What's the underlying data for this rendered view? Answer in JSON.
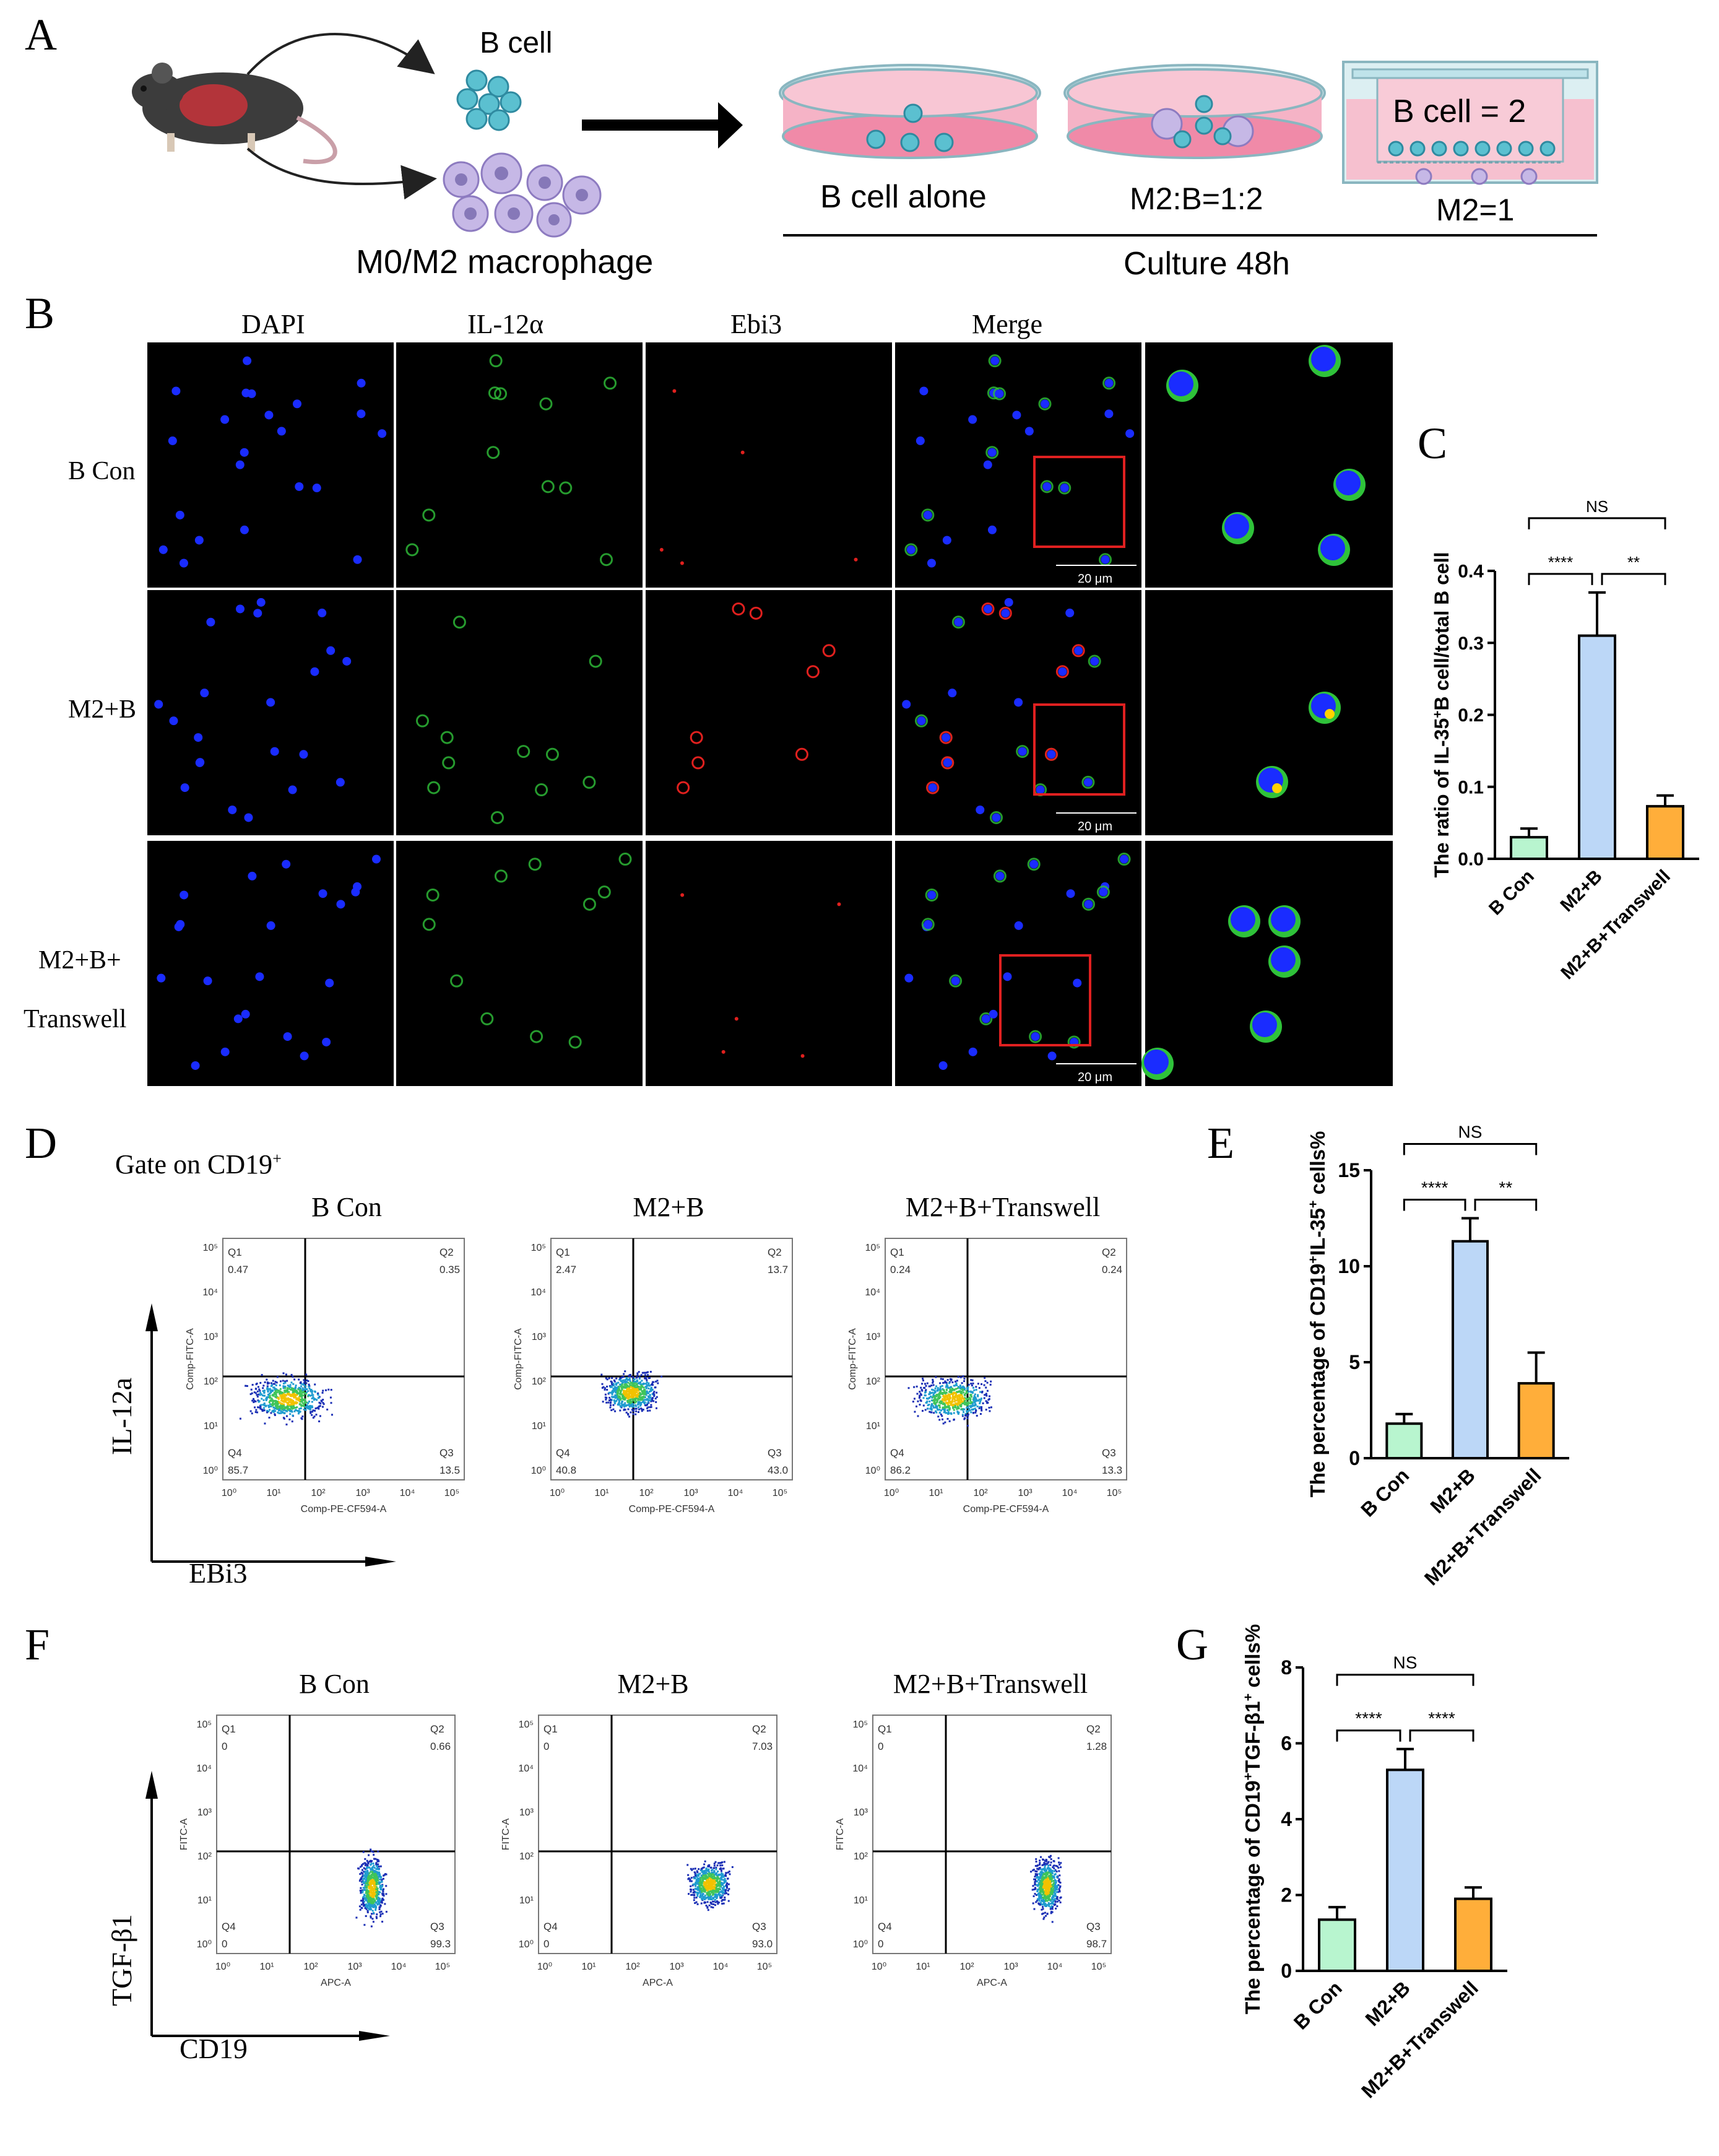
{
  "panels": {
    "A": "A",
    "B": "B",
    "C": "C",
    "D": "D",
    "E": "E",
    "F": "F",
    "G": "G"
  },
  "panel_a": {
    "b_cell": "B cell",
    "macrophage": "M0/M2 macrophage",
    "dish1": "B cell alone",
    "dish2": "M2:B=1:2",
    "dish3_top": "B cell = 2",
    "dish3_bottom": "M2=1",
    "culture": "Culture 48h",
    "colors": {
      "dish_pink": "#f5b3c6",
      "cell_teal": "#4fb8c9",
      "macro_purple": "#b6a6d8",
      "mouse_dark": "#3c3c3c"
    }
  },
  "panel_b": {
    "columns": [
      "DAPI",
      "IL-12α",
      "Ebi3",
      "Merge"
    ],
    "rows": [
      "B Con",
      "M2+B",
      "M2+B+",
      "Transwell"
    ],
    "scale_bar": "20 μm",
    "colors": {
      "dapi": "#1a2cff",
      "il12": "#2fc23a",
      "ebi3": "#e0201e",
      "box": "#e02020"
    }
  },
  "chart_c": {
    "type": "bar",
    "ylabel_parts": [
      "The ratio of IL-35",
      "+",
      "B cell/total B cell"
    ],
    "categories": [
      "B Con",
      "M2+B",
      "M2+B+Transwell"
    ],
    "values": [
      0.03,
      0.31,
      0.073
    ],
    "errors": [
      0.012,
      0.06,
      0.015
    ],
    "ylim": [
      0,
      0.4
    ],
    "yticks": [
      "0.0",
      "0.1",
      "0.2",
      "0.3",
      "0.4"
    ],
    "significance": [
      {
        "label": "****",
        "pair": [
          0,
          1
        ]
      },
      {
        "label": "**",
        "pair": [
          1,
          2
        ]
      },
      {
        "label": "NS",
        "pair": [
          0,
          2
        ]
      }
    ],
    "colors": [
      "#b8f5cf",
      "#bcd7f7",
      "#ffae3a"
    ]
  },
  "panel_d": {
    "gate": "Gate on CD19",
    "gate_sup": "+",
    "titles": [
      "B Con",
      "M2+B",
      "M2+B+Transwell"
    ],
    "y_axis_text": "Comp-FITC-A",
    "x_axis_text": "Comp-PE-CF594-A",
    "big_y": "IL-12a",
    "big_x": "EBi3",
    "quadrants": [
      {
        "Q1": "0.47",
        "Q2": "0.35",
        "Q3": "13.5",
        "Q4": "85.7"
      },
      {
        "Q1": "2.47",
        "Q2": "13.7",
        "Q3": "43.0",
        "Q4": "40.8"
      },
      {
        "Q1": "0.24",
        "Q2": "0.24",
        "Q3": "13.3",
        "Q4": "86.2"
      }
    ]
  },
  "chart_e": {
    "type": "bar",
    "ylabel_parts": [
      "The percentage of CD19",
      "+",
      "IL-35",
      "+",
      " cells%"
    ],
    "categories": [
      "B Con",
      "M2+B",
      "M2+B+Transwell"
    ],
    "values": [
      1.8,
      11.3,
      3.9
    ],
    "errors": [
      0.5,
      1.2,
      1.6
    ],
    "ylim": [
      0,
      15
    ],
    "yticks": [
      "0",
      "5",
      "10",
      "15"
    ],
    "significance": [
      {
        "label": "****",
        "pair": [
          0,
          1
        ]
      },
      {
        "label": "**",
        "pair": [
          1,
          2
        ]
      },
      {
        "label": "NS",
        "pair": [
          0,
          2
        ]
      }
    ],
    "colors": [
      "#b8f5cf",
      "#bcd7f7",
      "#ffae3a"
    ]
  },
  "panel_f": {
    "titles": [
      "B Con",
      "M2+B",
      "M2+B+Transwell"
    ],
    "y_axis_text": "FITC-A",
    "x_axis_text": "APC-A",
    "big_y": "TGF-β1",
    "big_x": "CD19",
    "quadrants": [
      {
        "Q1": "0",
        "Q2": "0.66",
        "Q3": "99.3",
        "Q4": "0"
      },
      {
        "Q1": "0",
        "Q2": "7.03",
        "Q3": "93.0",
        "Q4": "0"
      },
      {
        "Q1": "0",
        "Q2": "1.28",
        "Q3": "98.7",
        "Q4": "0"
      }
    ]
  },
  "chart_g": {
    "type": "bar",
    "ylabel_parts": [
      "The percentage of CD19",
      "+",
      "TGF-β1",
      "+",
      " cells%"
    ],
    "categories": [
      "B Con",
      "M2+B",
      "M2+B+Transwell"
    ],
    "values": [
      1.35,
      5.3,
      1.9
    ],
    "errors": [
      0.33,
      0.55,
      0.3
    ],
    "ylim": [
      0,
      8
    ],
    "yticks": [
      "0",
      "2",
      "4",
      "6",
      "8"
    ],
    "significance": [
      {
        "label": "****",
        "pair": [
          0,
          1
        ]
      },
      {
        "label": "****",
        "pair": [
          1,
          2
        ]
      },
      {
        "label": "NS",
        "pair": [
          0,
          2
        ]
      }
    ],
    "colors": [
      "#b8f5cf",
      "#bcd7f7",
      "#ffae3a"
    ]
  }
}
